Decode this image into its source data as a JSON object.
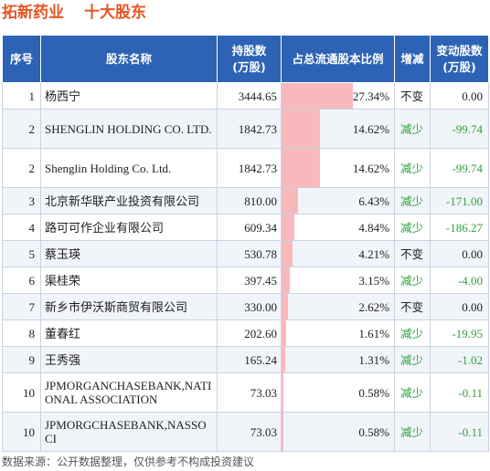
{
  "header": {
    "company": "拓新药业",
    "subtitle": "十大股东"
  },
  "table": {
    "columns": [
      "序号",
      "股东名称",
      "持股数\n(万股)",
      "占总流通股本比例",
      "增减",
      "变动股数\n(万股)"
    ],
    "rows": [
      {
        "rank": "1",
        "name": "杨西宁",
        "shares": "3444.65",
        "ratio_text": "27.34%",
        "ratio": 27.34,
        "change": "不变",
        "delta": "0.00",
        "dir": "flat"
      },
      {
        "rank": "2",
        "name": "SHENGLIN HOLDING CO. LTD.",
        "shares": "1842.73",
        "ratio_text": "14.62%",
        "ratio": 14.62,
        "change": "减少",
        "delta": "-99.74",
        "dir": "down"
      },
      {
        "rank": "2",
        "name": "Shenglin Holding Co. Ltd.",
        "shares": "1842.73",
        "ratio_text": "14.62%",
        "ratio": 14.62,
        "change": "减少",
        "delta": "-99.74",
        "dir": "down"
      },
      {
        "rank": "3",
        "name": "北京新华联产业投资有限公司",
        "shares": "810.00",
        "ratio_text": "6.43%",
        "ratio": 6.43,
        "change": "减少",
        "delta": "-171.00",
        "dir": "down"
      },
      {
        "rank": "4",
        "name": "路可可作企业有限公司",
        "shares": "609.34",
        "ratio_text": "4.84%",
        "ratio": 4.84,
        "change": "减少",
        "delta": "-186.27",
        "dir": "down"
      },
      {
        "rank": "5",
        "name": "蔡玉瑛",
        "shares": "530.78",
        "ratio_text": "4.21%",
        "ratio": 4.21,
        "change": "不变",
        "delta": "0.00",
        "dir": "flat"
      },
      {
        "rank": "6",
        "name": "渠桂荣",
        "shares": "397.45",
        "ratio_text": "3.15%",
        "ratio": 3.15,
        "change": "减少",
        "delta": "-4.00",
        "dir": "down"
      },
      {
        "rank": "7",
        "name": "新乡市伊沃斯商贸有限公司",
        "shares": "330.00",
        "ratio_text": "2.62%",
        "ratio": 2.62,
        "change": "不变",
        "delta": "0.00",
        "dir": "flat"
      },
      {
        "rank": "8",
        "name": "董春红",
        "shares": "202.60",
        "ratio_text": "1.61%",
        "ratio": 1.61,
        "change": "减少",
        "delta": "-19.95",
        "dir": "down"
      },
      {
        "rank": "9",
        "name": "王秀强",
        "shares": "165.24",
        "ratio_text": "1.31%",
        "ratio": 1.31,
        "change": "减少",
        "delta": "-1.02",
        "dir": "down"
      },
      {
        "rank": "10",
        "name": "JPMORGANCHASEBANK,NATIONAL ASSOCIATION",
        "shares": "73.03",
        "ratio_text": "0.58%",
        "ratio": 0.58,
        "change": "减少",
        "delta": "-0.11",
        "dir": "down"
      },
      {
        "rank": "10",
        "name": "JPMORGCHASEBANK,NASSOCI",
        "shares": "73.03",
        "ratio_text": "0.58%",
        "ratio": 0.58,
        "change": "减少",
        "delta": "-0.11",
        "dir": "down"
      }
    ],
    "ratio_bar_max": 27.34
  },
  "footer": {
    "source": "数据来源：公开数据整理，仅供参考不构成投资建议"
  },
  "colors": {
    "header_bg": "#2d63b5",
    "title": "#e8541f",
    "bar": "#f8b9bd",
    "decrease": "#2ea03c"
  }
}
